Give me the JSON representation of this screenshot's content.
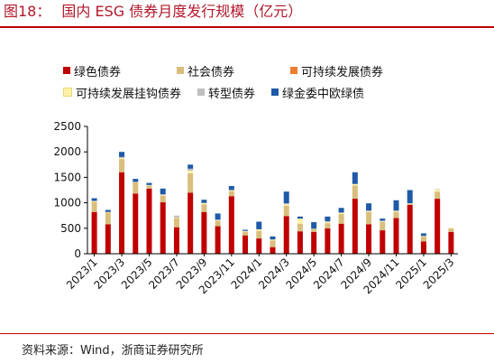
{
  "header": {
    "prefix": "图18：",
    "title": "国内 ESG 债券月度发行规模（亿元）"
  },
  "footer": {
    "source": "资料来源：Wind，浙商证券研究所"
  },
  "chart_data": {
    "type": "bar",
    "stacked": true,
    "title": "国内 ESG 债券月度发行规模（亿元）",
    "categories": [
      "2023/1",
      "2023/2",
      "2023/3",
      "2023/4",
      "2023/5",
      "2023/6",
      "2023/7",
      "2023/8",
      "2023/9",
      "2023/10",
      "2023/11",
      "2023/12",
      "2024/1",
      "2024/2",
      "2024/3",
      "2024/4",
      "2024/5",
      "2024/6",
      "2024/7",
      "2024/8",
      "2024/9",
      "2024/10",
      "2024/11",
      "2024/12",
      "2025/1",
      "2025/2",
      "2025/3"
    ],
    "x_tick_labels": [
      "2023/1",
      "2023/3",
      "2023/5",
      "2023/7",
      "2023/9",
      "2023/11",
      "2024/1",
      "2024/3",
      "2024/5",
      "2024/7",
      "2024/9",
      "2024/11",
      "2025/1",
      "2025/3"
    ],
    "ylim": [
      0,
      2500
    ],
    "yticks": [
      0,
      500,
      1000,
      1500,
      2000,
      2500
    ],
    "legend_position": "top",
    "series": [
      {
        "name": "绿色债券",
        "color": "#c00000",
        "values": [
          820,
          580,
          1600,
          1180,
          1280,
          1010,
          520,
          1200,
          820,
          540,
          1130,
          360,
          300,
          130,
          740,
          440,
          430,
          500,
          590,
          1080,
          580,
          460,
          700,
          960,
          240,
          1080,
          430
        ]
      },
      {
        "name": "社会债券",
        "color": "#d9be7c",
        "values": [
          200,
          230,
          260,
          220,
          50,
          130,
          180,
          380,
          150,
          110,
          100,
          70,
          150,
          130,
          200,
          150,
          50,
          100,
          190,
          260,
          240,
          160,
          120,
          20,
          100,
          140,
          70
        ]
      },
      {
        "name": "可持续发展债券",
        "color": "#ed7d31",
        "values": [
          0,
          0,
          0,
          0,
          0,
          0,
          0,
          0,
          0,
          0,
          0,
          0,
          0,
          0,
          0,
          0,
          0,
          0,
          0,
          0,
          0,
          0,
          0,
          0,
          0,
          0,
          0
        ]
      },
      {
        "name": "可持续发展挂钩债券",
        "color": "#fff2a8",
        "values": [
          10,
          10,
          20,
          10,
          10,
          10,
          10,
          50,
          20,
          10,
          20,
          10,
          30,
          20,
          30,
          100,
          10,
          20,
          20,
          30,
          10,
          10,
          10,
          10,
          10,
          40,
          10
        ]
      },
      {
        "name": "转型债券",
        "color": "#bfbfbf",
        "values": [
          10,
          0,
          20,
          0,
          10,
          20,
          40,
          40,
          10,
          10,
          0,
          10,
          0,
          0,
          20,
          0,
          0,
          20,
          10,
          0,
          20,
          20,
          20,
          0,
          0,
          10,
          0
        ]
      },
      {
        "name": "绿金委中欧绿债",
        "color": "#1f5aa8",
        "values": [
          50,
          40,
          100,
          60,
          40,
          110,
          0,
          80,
          60,
          120,
          80,
          20,
          150,
          60,
          230,
          40,
          130,
          90,
          90,
          230,
          140,
          40,
          200,
          260,
          50,
          0,
          0
        ]
      }
    ]
  }
}
